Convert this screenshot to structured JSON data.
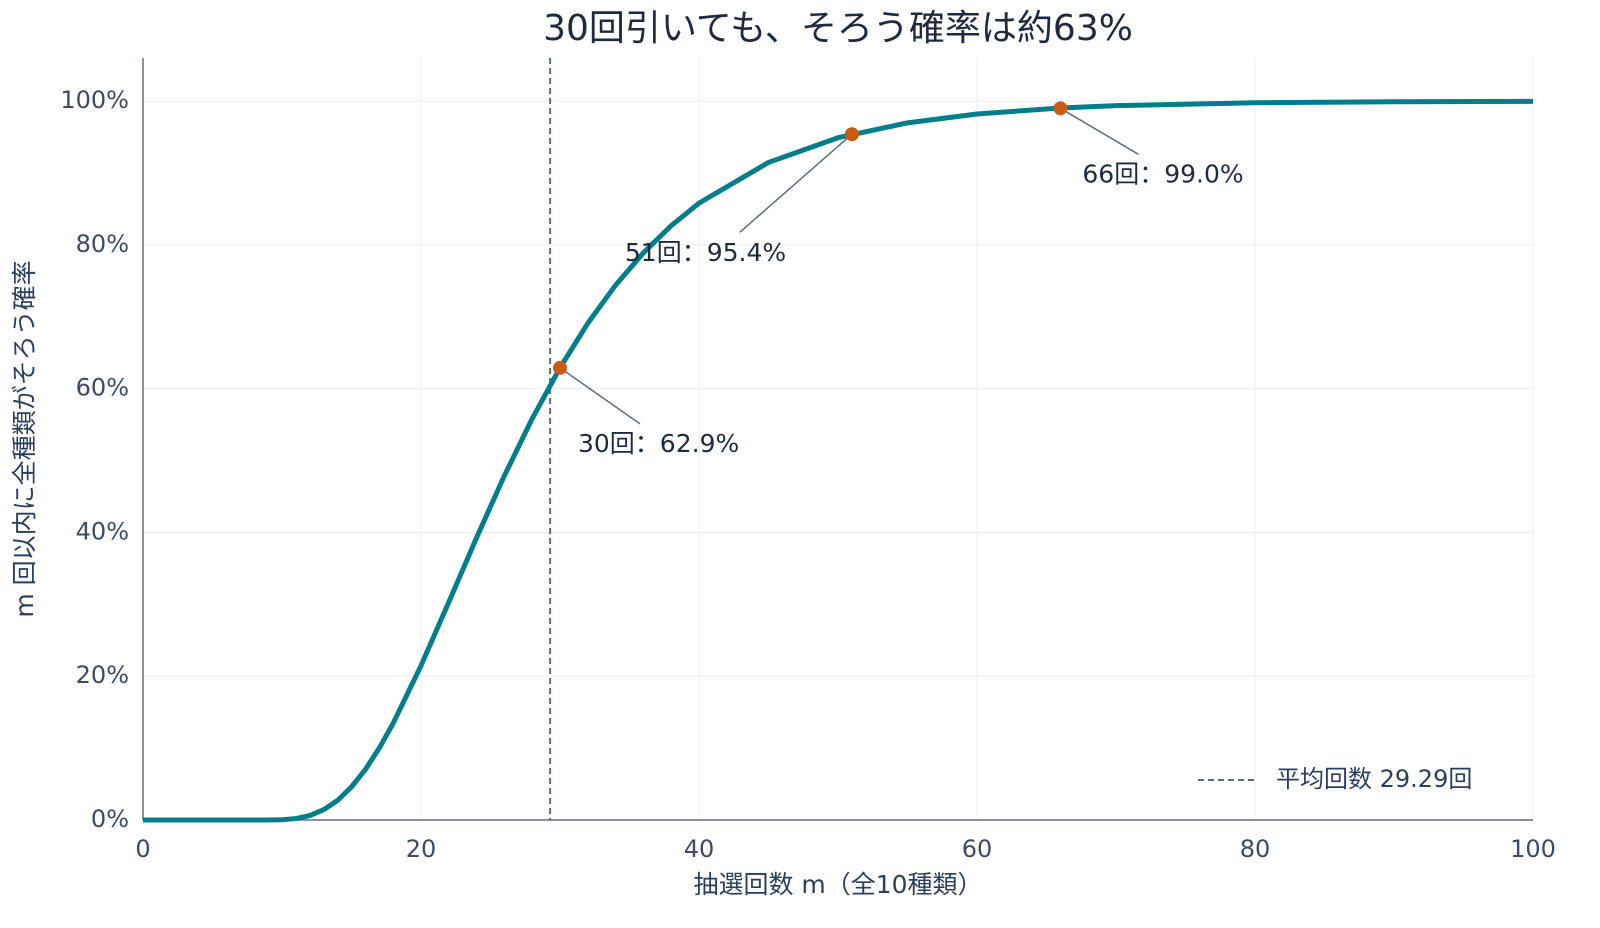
{
  "chart_data": {
    "type": "line",
    "title": "30回引いても、そろう確率は約63%",
    "x_label": "抽選回数 m（全10種類）",
    "y_label": "m 回以内に全種類がそろう確率",
    "x": [
      0,
      5,
      9,
      10,
      11,
      12,
      13,
      14,
      15,
      16,
      17,
      18,
      20,
      22,
      24,
      26,
      28,
      30,
      32,
      34,
      36,
      38,
      40,
      45,
      50,
      55,
      60,
      66,
      70,
      80,
      90,
      100
    ],
    "series": [
      {
        "name": "確率",
        "color": "#027d8b",
        "values": [
          0,
          0,
          0,
          0.04,
          0.2,
          0.62,
          1.43,
          2.73,
          4.6,
          7.03,
          10.01,
          13.47,
          21.47,
          30.31,
          39.28,
          47.9,
          55.83,
          62.91,
          69.1,
          74.41,
          78.9,
          82.67,
          85.81,
          91.47,
          94.91,
          96.98,
          98.21,
          99.05,
          99.37,
          99.78,
          99.92,
          99.97
        ]
      }
    ],
    "annotations": [
      {
        "x": 30,
        "y": 62.9,
        "label": "30回：62.9%"
      },
      {
        "x": 51,
        "y": 95.4,
        "label": "51回：95.4%"
      },
      {
        "x": 66,
        "y": 99.0,
        "label": "66回：99.0%"
      }
    ],
    "annotation_color": "#c95b17",
    "mean_line": {
      "x": 29.29,
      "name": "平均回数 29.29回",
      "color": "#5f6b7a"
    },
    "xlim": [
      0,
      100
    ],
    "xticks": [
      0,
      20,
      40,
      60,
      80,
      100
    ],
    "ylim": [
      0,
      106
    ],
    "yticks": [
      {
        "value": 0,
        "label": "0%"
      },
      {
        "value": 20,
        "label": "20%"
      },
      {
        "value": 40,
        "label": "40%"
      },
      {
        "value": 60,
        "label": "60%"
      },
      {
        "value": 80,
        "label": "80%"
      },
      {
        "value": 100,
        "label": "100%"
      }
    ],
    "grid": true,
    "legend_position": "lower right"
  }
}
